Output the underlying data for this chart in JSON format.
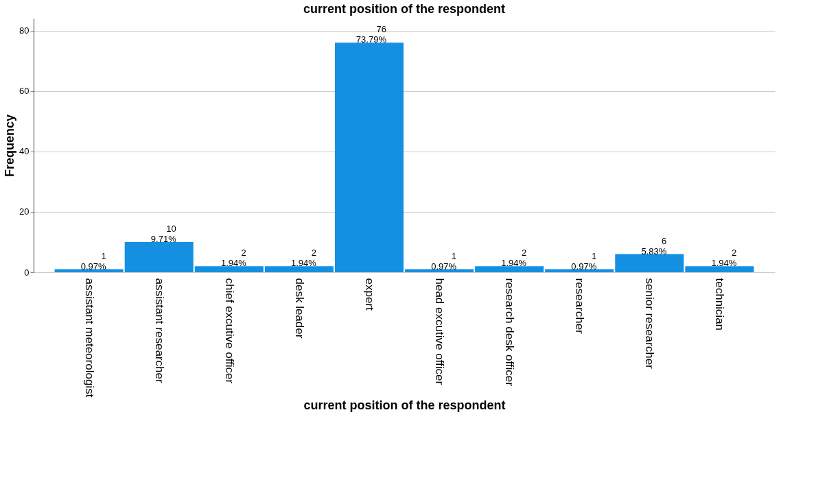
{
  "chart_data": {
    "type": "bar",
    "title": "current position of the respondent",
    "xlabel": "current position of the respondent",
    "ylabel": "Frequency",
    "categories": [
      "assistant meteorologist",
      "assistant researcher",
      "chief excutive officer",
      "desk leader",
      "expert",
      "head excutive officer",
      "research desk officer",
      "researcher",
      "senior researcher",
      "technician"
    ],
    "values": [
      1,
      10,
      2,
      2,
      76,
      1,
      2,
      1,
      6,
      2
    ],
    "value_labels": [
      "1\n0.97%",
      "10\n9.71%",
      "2\n1.94%",
      "2\n1.94%",
      "76\n73.79%",
      "1\n0.97%",
      "2\n1.94%",
      "1\n0.97%",
      "6\n5.83%",
      "2\n1.94%"
    ],
    "color": "#1490e3",
    "ylim": [
      0,
      84
    ],
    "yticks": [
      0,
      20,
      40,
      60,
      80
    ],
    "grid": "y"
  }
}
